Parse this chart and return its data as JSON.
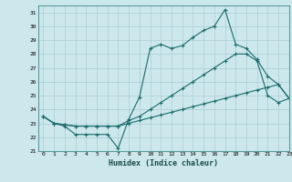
{
  "xlabel": "Humidex (Indice chaleur)",
  "bg_color": "#cce8ec",
  "grid_color": "#aacdd4",
  "line_color": "#1a6b6b",
  "xlim": [
    -0.5,
    23
  ],
  "ylim": [
    21,
    31.5
  ],
  "xticks": [
    0,
    1,
    2,
    3,
    4,
    5,
    6,
    7,
    8,
    9,
    10,
    11,
    12,
    13,
    14,
    15,
    16,
    17,
    18,
    19,
    20,
    21,
    22,
    23
  ],
  "yticks": [
    21,
    22,
    23,
    24,
    25,
    26,
    27,
    28,
    29,
    30,
    31
  ],
  "line1_x": [
    0,
    1,
    2,
    3,
    4,
    5,
    6,
    7,
    8,
    9,
    10,
    11,
    12,
    13,
    14,
    15,
    16,
    17,
    18,
    19,
    20,
    21,
    22,
    23
  ],
  "line1_y": [
    23.5,
    23.0,
    22.8,
    22.2,
    22.2,
    22.2,
    22.2,
    21.2,
    23.3,
    24.9,
    28.4,
    28.7,
    28.4,
    28.6,
    29.2,
    29.7,
    30.0,
    31.2,
    28.7,
    28.4,
    27.6,
    26.4,
    25.8,
    24.8
  ],
  "line2_x": [
    0,
    1,
    2,
    3,
    4,
    5,
    6,
    7,
    8,
    9,
    10,
    11,
    12,
    13,
    14,
    15,
    16,
    17,
    18,
    19,
    20,
    21,
    22,
    23
  ],
  "line2_y": [
    23.5,
    23.0,
    22.9,
    22.8,
    22.8,
    22.8,
    22.8,
    22.8,
    23.2,
    23.5,
    24.0,
    24.5,
    25.0,
    25.5,
    26.0,
    26.5,
    27.0,
    27.5,
    28.0,
    28.0,
    27.5,
    25.0,
    24.5,
    24.8
  ],
  "line3_x": [
    0,
    1,
    2,
    3,
    4,
    5,
    6,
    7,
    8,
    9,
    10,
    11,
    12,
    13,
    14,
    15,
    16,
    17,
    18,
    19,
    20,
    21,
    22,
    23
  ],
  "line3_y": [
    23.5,
    23.0,
    22.9,
    22.8,
    22.8,
    22.8,
    22.8,
    22.8,
    23.0,
    23.2,
    23.4,
    23.6,
    23.8,
    24.0,
    24.2,
    24.4,
    24.6,
    24.8,
    25.0,
    25.2,
    25.4,
    25.6,
    25.8,
    24.8
  ]
}
